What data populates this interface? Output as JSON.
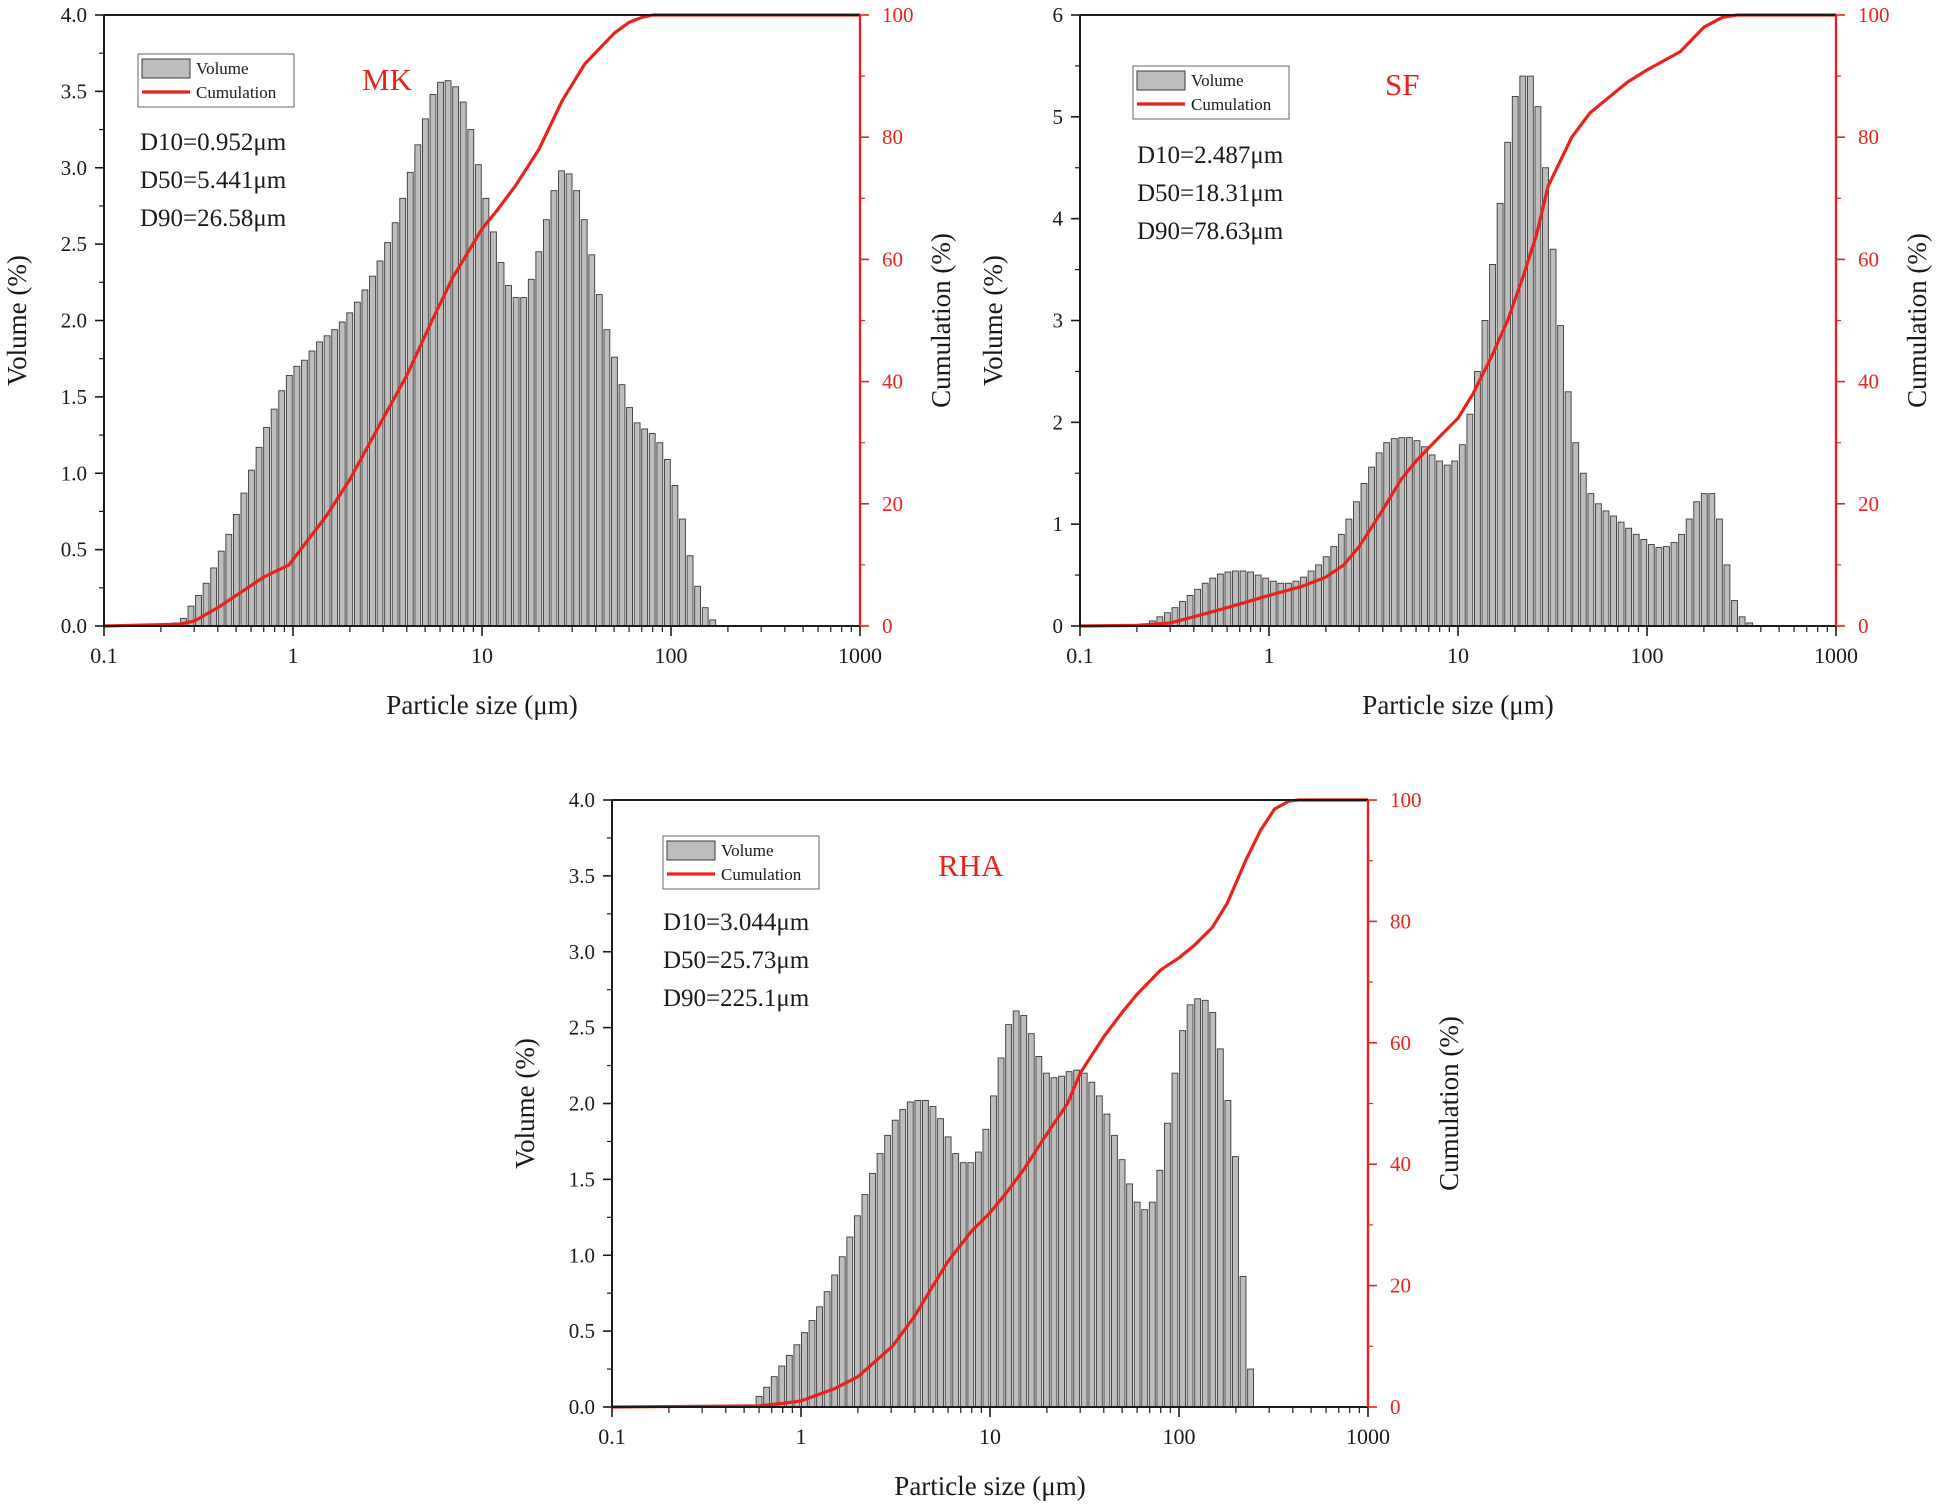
{
  "figure": {
    "colors": {
      "bar_fill": "#bdbdbd",
      "bar_stroke": "#3a3a3a",
      "cumulation": "#e8231c",
      "axis": "#1a1a1a",
      "panel_label": "#e8231c"
    }
  },
  "chart_data": [
    {
      "id": "mk",
      "type": "bar",
      "panel_label": "MK",
      "legend": [
        "Volume",
        "Cumulation"
      ],
      "stats": [
        "D10=0.952μm",
        "D50=5.441μm",
        "D90=26.58μm"
      ],
      "xlabel": "Particle size (μm)",
      "ylabel": "Volume (%)",
      "y2label": "Cumulation (%)",
      "xscale": "log",
      "xlim": [
        0.1,
        1000
      ],
      "ylim": [
        0,
        4
      ],
      "y2lim": [
        0,
        100
      ],
      "xticks": [
        "0.1",
        "1",
        "10",
        "100",
        "1000"
      ],
      "yticks": [
        "0.0",
        "0.5",
        "1.0",
        "1.5",
        "2.0",
        "2.5",
        "3.0",
        "3.5",
        "4.0"
      ],
      "y2ticks": [
        "0",
        "20",
        "40",
        "60",
        "80",
        "100"
      ],
      "volume_series": {
        "name": "Volume",
        "x_start": 0.24,
        "x_step_ratio": 1.0965,
        "values": [
          0.02,
          0.05,
          0.13,
          0.2,
          0.28,
          0.38,
          0.49,
          0.6,
          0.73,
          0.87,
          1.02,
          1.17,
          1.3,
          1.42,
          1.54,
          1.64,
          1.7,
          1.74,
          1.8,
          1.86,
          1.9,
          1.94,
          1.99,
          2.05,
          2.12,
          2.2,
          2.29,
          2.39,
          2.51,
          2.64,
          2.8,
          2.97,
          3.15,
          3.32,
          3.48,
          3.56,
          3.57,
          3.53,
          3.43,
          3.25,
          3.02,
          2.8,
          2.58,
          2.38,
          2.23,
          2.15,
          2.15,
          2.27,
          2.45,
          2.66,
          2.85,
          2.98,
          2.96,
          2.85,
          2.66,
          2.43,
          2.17,
          1.94,
          1.76,
          1.58,
          1.43,
          1.33,
          1.29,
          1.26,
          1.2,
          1.09,
          0.92,
          0.7,
          0.46,
          0.26,
          0.12,
          0.04
        ]
      },
      "cumulation_series": {
        "name": "Cumulation",
        "x": [
          0.1,
          0.25,
          0.3,
          0.4,
          0.5,
          0.7,
          0.952,
          1.5,
          2.0,
          3.0,
          4.0,
          5.441,
          7.0,
          10.0,
          12.0,
          15.0,
          20.0,
          26.58,
          35.0,
          50.0,
          60.0,
          70.0,
          80.0,
          1000.0
        ],
        "y": [
          0,
          0.3,
          0.8,
          3,
          5,
          8,
          10,
          18,
          24,
          34,
          41,
          50,
          57,
          65,
          68,
          72,
          78,
          86,
          92,
          97,
          98.8,
          99.6,
          100,
          100
        ]
      }
    },
    {
      "id": "sf",
      "type": "bar",
      "panel_label": "SF",
      "legend": [
        "Volume",
        "Cumulation"
      ],
      "stats": [
        "D10=2.487μm",
        "D50=18.31μm",
        "D90=78.63μm"
      ],
      "xlabel": "Particle size (μm)",
      "ylabel": "Volume (%)",
      "y2label": "Cumulation (%)",
      "xscale": "log",
      "xlim": [
        0.1,
        1000
      ],
      "ylim": [
        0,
        6
      ],
      "y2lim": [
        0,
        100
      ],
      "xticks": [
        "0.1",
        "1",
        "10",
        "100",
        "1000"
      ],
      "yticks": [
        "0",
        "1",
        "2",
        "3",
        "4",
        "5",
        "6"
      ],
      "y2ticks": [
        "0",
        "20",
        "40",
        "60",
        "80",
        "100"
      ],
      "volume_series": {
        "name": "Volume",
        "x_start": 0.22,
        "x_step_ratio": 1.0965,
        "values": [
          0.02,
          0.05,
          0.09,
          0.13,
          0.18,
          0.24,
          0.3,
          0.36,
          0.42,
          0.47,
          0.51,
          0.53,
          0.54,
          0.54,
          0.53,
          0.5,
          0.47,
          0.44,
          0.42,
          0.42,
          0.44,
          0.48,
          0.54,
          0.6,
          0.68,
          0.78,
          0.9,
          1.05,
          1.22,
          1.4,
          1.56,
          1.7,
          1.8,
          1.84,
          1.85,
          1.85,
          1.82,
          1.76,
          1.68,
          1.62,
          1.58,
          1.62,
          1.78,
          2.08,
          2.5,
          3.0,
          3.55,
          4.15,
          4.75,
          5.2,
          5.4,
          5.4,
          5.1,
          4.5,
          3.7,
          2.95,
          2.3,
          1.8,
          1.5,
          1.3,
          1.2,
          1.13,
          1.08,
          1.02,
          0.96,
          0.9,
          0.85,
          0.8,
          0.77,
          0.78,
          0.82,
          0.9,
          1.05,
          1.22,
          1.3,
          1.3,
          1.05,
          0.6,
          0.25,
          0.09,
          0.03
        ]
      },
      "cumulation_series": {
        "name": "Cumulation",
        "x": [
          0.1,
          0.2,
          0.3,
          0.4,
          0.6,
          1.0,
          1.5,
          2.0,
          2.487,
          3.0,
          4.0,
          5.0,
          6.0,
          8.0,
          10.0,
          12.0,
          15.0,
          18.31,
          22.0,
          26.0,
          30.0,
          40.0,
          50.0,
          60.0,
          78.63,
          100.0,
          150.0,
          200.0,
          250.0,
          300.0,
          1000.0
        ],
        "y": [
          0,
          0.1,
          0.5,
          1.5,
          3,
          5,
          6.5,
          8,
          10,
          13,
          19,
          24,
          27,
          31,
          34,
          38,
          44,
          50,
          57,
          64,
          72,
          80,
          84,
          86,
          89,
          91,
          94,
          98,
          99.6,
          100,
          100
        ]
      }
    },
    {
      "id": "rha",
      "type": "bar",
      "panel_label": "RHA",
      "legend": [
        "Volume",
        "Cumulation"
      ],
      "stats": [
        "D10=3.044μm",
        "D50=25.73μm",
        "D90=225.1μm"
      ],
      "xlabel": "Particle size (μm)",
      "ylabel": "Volume (%)",
      "y2label": "Cumulation (%)",
      "xscale": "log",
      "xlim": [
        0.1,
        1000
      ],
      "ylim": [
        0,
        4
      ],
      "y2lim": [
        0,
        100
      ],
      "xticks": [
        "0.1",
        "1",
        "10",
        "100",
        "1000"
      ],
      "yticks": [
        "0.0",
        "0.5",
        "1.0",
        "1.5",
        "2.0",
        "2.5",
        "3.0",
        "3.5",
        "4.0"
      ],
      "y2ticks": [
        "0",
        "20",
        "40",
        "60",
        "80",
        "100"
      ],
      "volume_series": {
        "name": "Volume",
        "x_start": 0.6,
        "x_step_ratio": 1.0965,
        "values": [
          0.07,
          0.13,
          0.2,
          0.27,
          0.34,
          0.41,
          0.49,
          0.57,
          0.66,
          0.76,
          0.87,
          0.99,
          1.12,
          1.26,
          1.4,
          1.54,
          1.67,
          1.79,
          1.89,
          1.96,
          2.01,
          2.02,
          2.02,
          1.98,
          1.9,
          1.78,
          1.67,
          1.61,
          1.61,
          1.68,
          1.83,
          2.05,
          2.3,
          2.52,
          2.61,
          2.58,
          2.46,
          2.31,
          2.2,
          2.17,
          2.18,
          2.21,
          2.22,
          2.2,
          2.14,
          2.05,
          1.93,
          1.79,
          1.63,
          1.47,
          1.35,
          1.3,
          1.35,
          1.56,
          1.87,
          2.2,
          2.48,
          2.65,
          2.69,
          2.68,
          2.6,
          2.36,
          2.02,
          1.65,
          0.86,
          0.25
        ]
      },
      "cumulation_series": {
        "name": "Cumulation",
        "x": [
          0.1,
          0.6,
          0.8,
          1.0,
          1.5,
          2.0,
          3.044,
          4.0,
          5.0,
          6.0,
          8.0,
          10.0,
          12.0,
          15.0,
          20.0,
          25.73,
          30.0,
          40.0,
          50.0,
          60.0,
          80.0,
          100.0,
          120.0,
          150.0,
          180.0,
          225.1,
          270.0,
          320.0,
          380.0,
          430.0,
          1000.0
        ],
        "y": [
          0,
          0.2,
          0.6,
          1,
          3,
          5,
          10,
          15,
          20,
          24,
          29,
          32,
          35,
          39,
          45,
          50,
          55,
          61,
          65,
          68,
          72,
          74,
          76,
          79,
          83,
          90,
          95,
          98.5,
          99.8,
          100,
          100
        ]
      }
    }
  ]
}
